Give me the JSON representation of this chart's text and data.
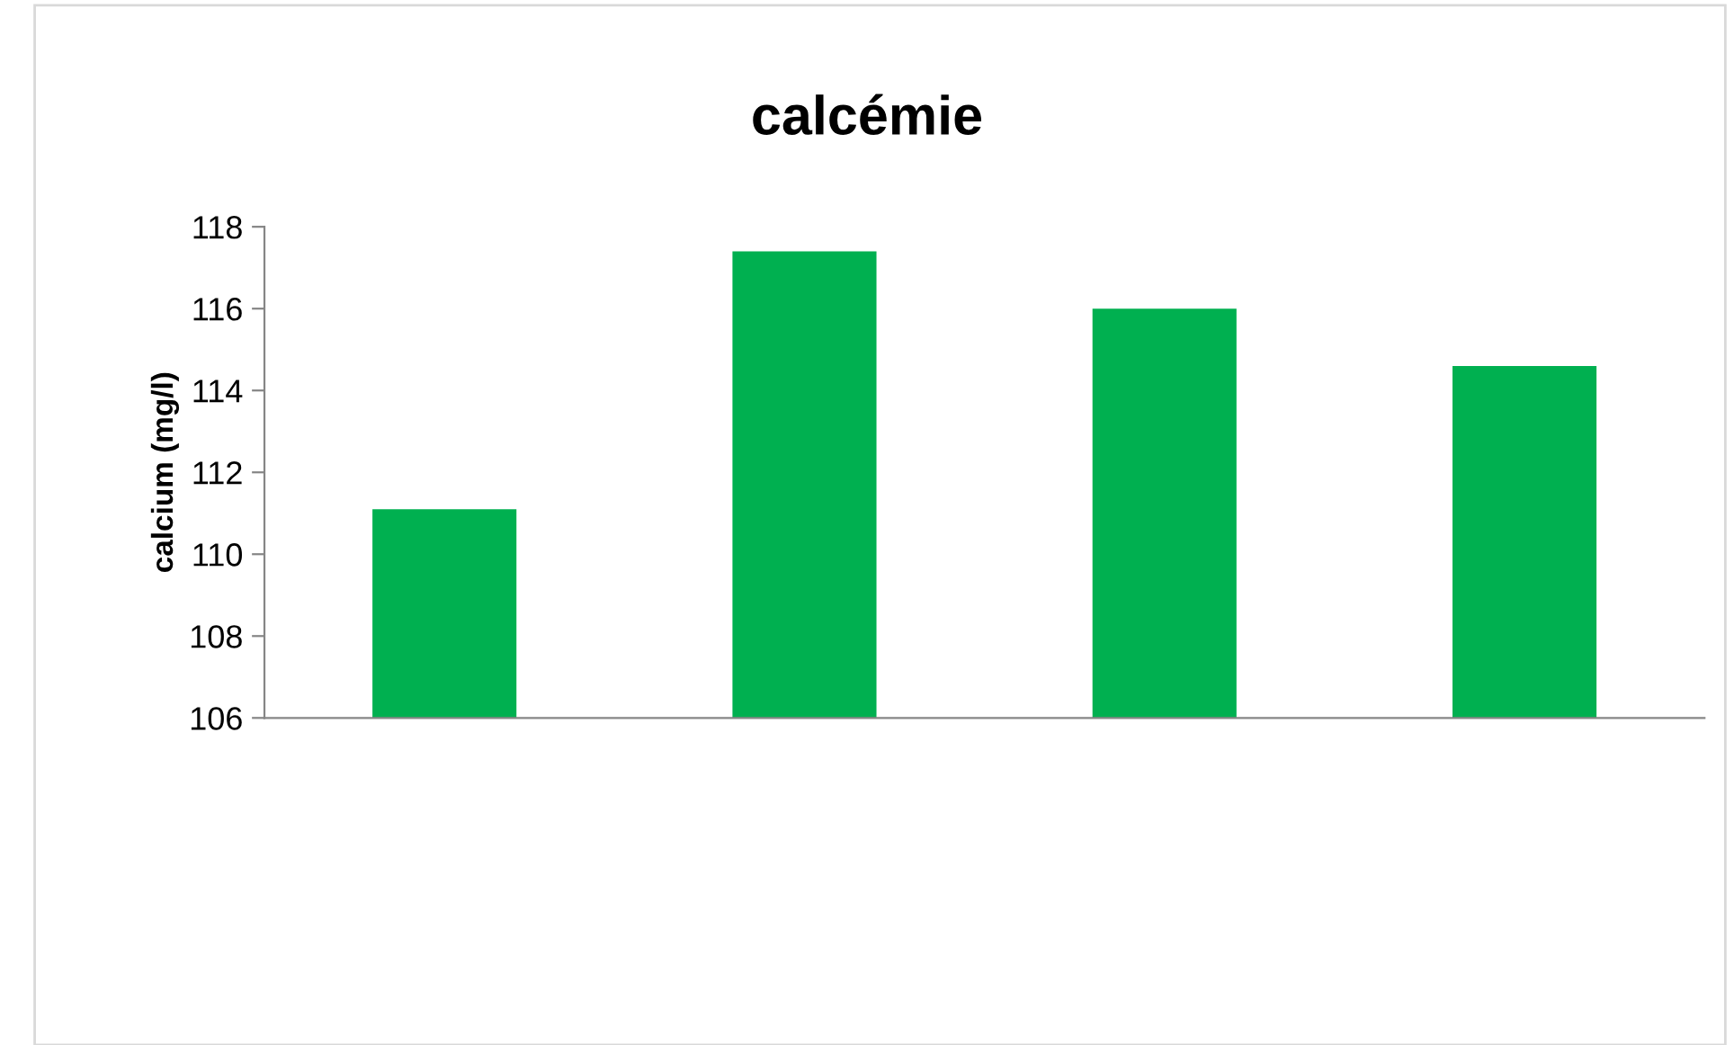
{
  "chart_data": {
    "type": "bar",
    "title": "calcémie",
    "ylabel": "calcium (mg/l)",
    "categories": [
      null,
      null,
      null,
      null
    ],
    "values": [
      111.1,
      117.4,
      116.0,
      114.6
    ],
    "color": "#00b050",
    "ylim": [
      106,
      118
    ],
    "yticks": [
      106,
      108,
      110,
      112,
      114,
      116,
      118
    ],
    "grid": false,
    "legend": false
  }
}
